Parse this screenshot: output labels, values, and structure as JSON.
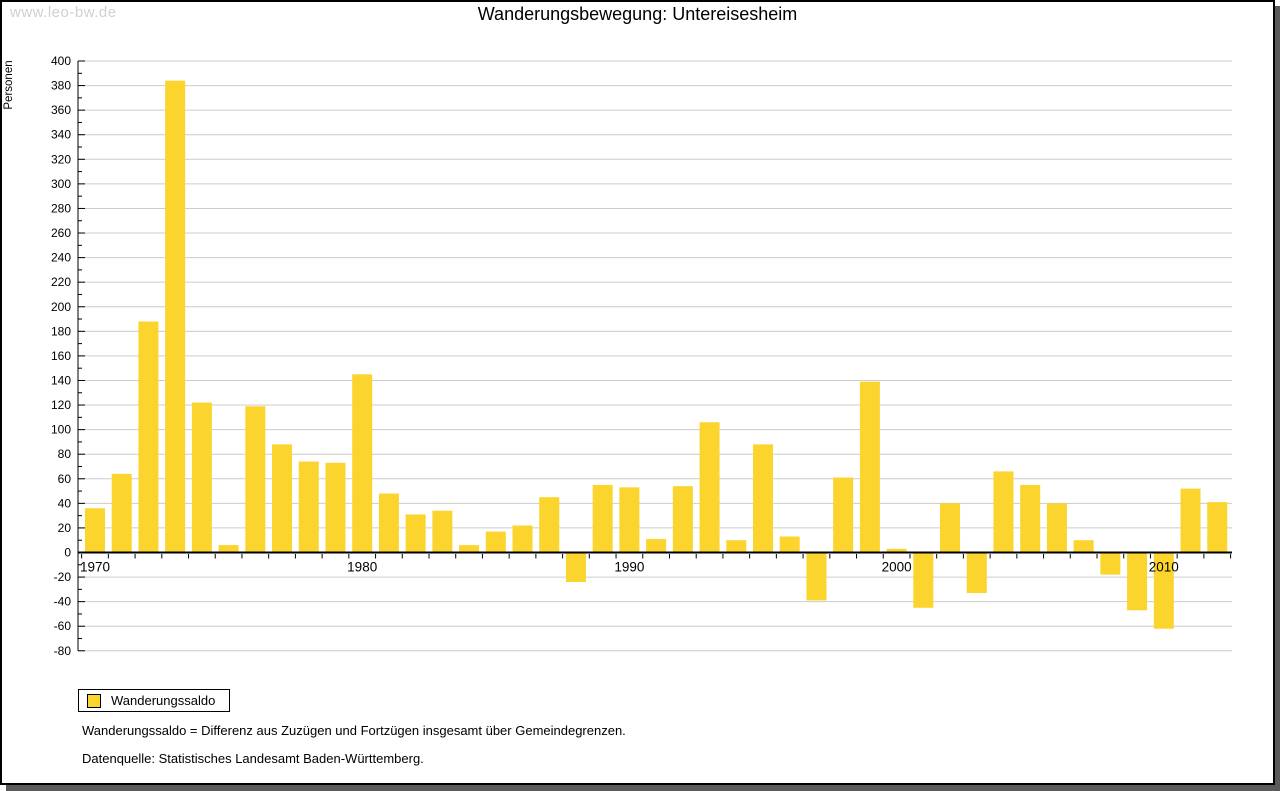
{
  "watermark": "www.leo-bw.de",
  "title": "Wanderungsbewegung: Untereisesheim",
  "legend": {
    "label": "Wanderungssaldo"
  },
  "footnotes": [
    "Wanderungssaldo = Differenz aus Zuzügen und Fortzügen insgesamt über Gemeindegrenzen.",
    "Datenquelle: Statistisches Landesamt Baden-Württemberg."
  ],
  "colors": {
    "bar": "#fbd42d",
    "grid": "#cccccc",
    "axis": "#000000",
    "watermark": "#d0d0d0",
    "shadow": "#5a5a5a"
  },
  "chart_data": {
    "type": "bar",
    "title": "Wanderungsbewegung: Untereisesheim",
    "xlabel": "",
    "ylabel": "Personen",
    "ylim": [
      -80,
      400
    ],
    "ytick_step": 20,
    "grid": true,
    "legend_position": "bottom-left",
    "xtick_labels": [
      1970,
      1980,
      1990,
      2000,
      2010
    ],
    "years": [
      1970,
      1971,
      1972,
      1973,
      1974,
      1975,
      1976,
      1977,
      1978,
      1979,
      1980,
      1981,
      1982,
      1983,
      1984,
      1985,
      1986,
      1987,
      1988,
      1989,
      1990,
      1991,
      1992,
      1993,
      1994,
      1995,
      1996,
      1997,
      1998,
      1999,
      2000,
      2001,
      2002,
      2003,
      2004,
      2005,
      2006,
      2007,
      2008,
      2009,
      2010,
      2011,
      2012
    ],
    "series": [
      {
        "name": "Wanderungssaldo",
        "values": [
          36,
          64,
          188,
          384,
          122,
          6,
          119,
          88,
          74,
          73,
          145,
          48,
          31,
          34,
          6,
          17,
          22,
          45,
          -24,
          55,
          53,
          11,
          54,
          106,
          10,
          88,
          13,
          -39,
          61,
          139,
          3,
          -45,
          40,
          -33,
          66,
          55,
          40,
          10,
          -18,
          -47,
          -62,
          52,
          41
        ]
      }
    ]
  }
}
